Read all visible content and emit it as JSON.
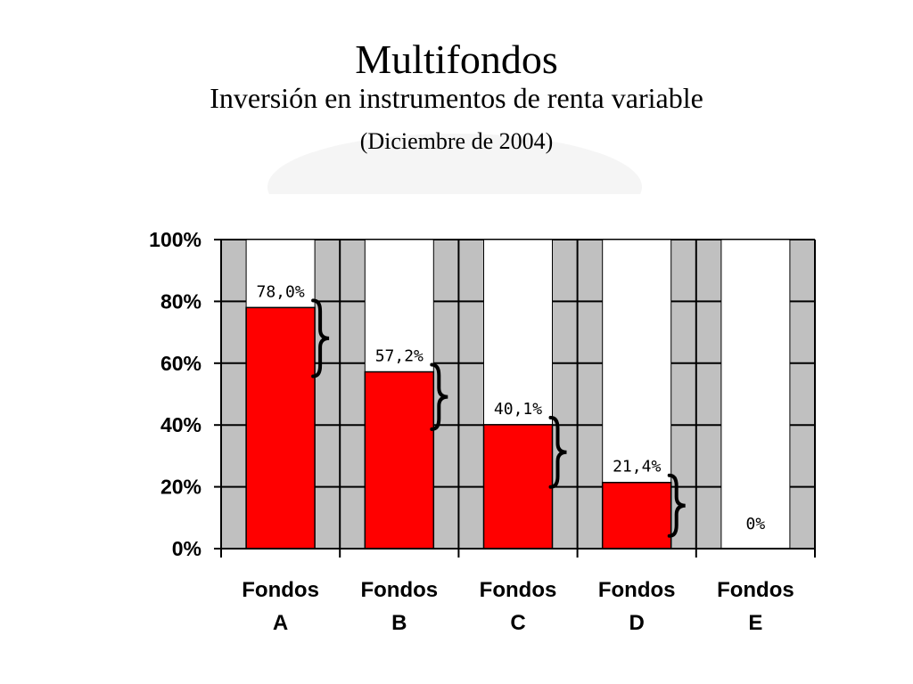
{
  "header": {
    "title": "Multifondos",
    "subtitle": "Inversión en instrumentos de renta variable",
    "date": "(Diciembre de 2004)"
  },
  "chart_data": {
    "type": "bar",
    "categories": [
      [
        "Fondos",
        "A"
      ],
      [
        "Fondos",
        "B"
      ],
      [
        "Fondos",
        "C"
      ],
      [
        "Fondos",
        "D"
      ],
      [
        "Fondos",
        "E"
      ]
    ],
    "values": [
      78.0,
      57.2,
      40.1,
      21.4,
      0
    ],
    "data_labels": [
      "78,0%",
      "57,2%",
      "40,1%",
      "21,4%",
      "0%"
    ],
    "yticks": [
      "0%",
      "20%",
      "40%",
      "60%",
      "80%",
      "100%"
    ],
    "ylim": [
      0,
      100
    ],
    "grid": true,
    "colors": {
      "bar": "#ff0000",
      "remainder": "#ffffff",
      "plot_background": "#c0c0c0"
    }
  }
}
